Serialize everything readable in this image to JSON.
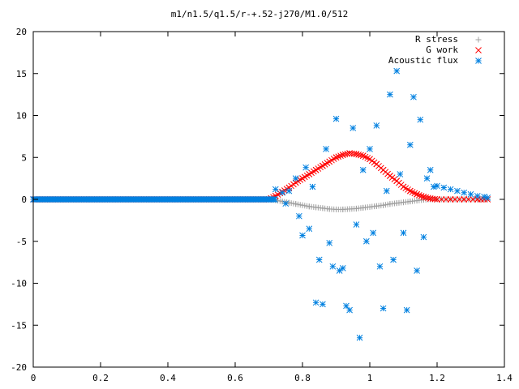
{
  "chart_data": {
    "type": "scatter",
    "title": "m1/n1.5/q1.5/r-+.52-j270/M1.0/512",
    "xlabel": "",
    "ylabel": "",
    "xlim": [
      0,
      1.4
    ],
    "ylim": [
      -20,
      20
    ],
    "x_ticks": [
      0,
      0.2,
      0.4,
      0.6,
      0.8,
      1,
      1.2,
      1.4
    ],
    "x_tick_labels": [
      "0",
      "0.2",
      "0.4",
      "0.6",
      "0.8",
      "1",
      "1.2",
      "1.4"
    ],
    "y_ticks": [
      -20,
      -15,
      -10,
      -5,
      0,
      5,
      10,
      15,
      20
    ],
    "y_tick_labels": [
      "-20",
      "-15",
      "-10",
      "-5",
      "0",
      "5",
      "10",
      "15",
      "20"
    ],
    "grid": false,
    "legend_position": "top-right",
    "series": [
      {
        "name": "R stress",
        "marker": "plus",
        "color": "#a0a0a0",
        "description": "zero for x<0.7, dips to about -1.2 near x=0.9, returns to 0 by x=1.2, then 0 to x=1.35",
        "points": [
          [
            0.7,
            0.0
          ],
          [
            0.72,
            -0.1
          ],
          [
            0.74,
            -0.25
          ],
          [
            0.76,
            -0.4
          ],
          [
            0.78,
            -0.55
          ],
          [
            0.8,
            -0.7
          ],
          [
            0.82,
            -0.85
          ],
          [
            0.84,
            -0.95
          ],
          [
            0.86,
            -1.05
          ],
          [
            0.88,
            -1.15
          ],
          [
            0.9,
            -1.2
          ],
          [
            0.92,
            -1.2
          ],
          [
            0.94,
            -1.15
          ],
          [
            0.96,
            -1.1
          ],
          [
            0.98,
            -1.0
          ],
          [
            1.0,
            -0.9
          ],
          [
            1.02,
            -0.8
          ],
          [
            1.04,
            -0.7
          ],
          [
            1.06,
            -0.55
          ],
          [
            1.08,
            -0.45
          ],
          [
            1.1,
            -0.35
          ],
          [
            1.12,
            -0.25
          ],
          [
            1.14,
            -0.15
          ],
          [
            1.16,
            -0.05
          ],
          [
            1.18,
            0.0
          ],
          [
            1.2,
            0.0
          ],
          [
            1.24,
            0.0
          ],
          [
            1.28,
            0.0
          ],
          [
            1.32,
            0.0
          ],
          [
            1.35,
            0.0
          ]
        ]
      },
      {
        "name": "G work",
        "marker": "cross",
        "color": "#ff0000",
        "description": "zero for x<0.7, rises to about 5.5 near x=0.93, falls back to 0 near x=1.2",
        "points": [
          [
            0.7,
            0.0
          ],
          [
            0.72,
            0.4
          ],
          [
            0.74,
            0.9
          ],
          [
            0.76,
            1.4
          ],
          [
            0.78,
            2.0
          ],
          [
            0.8,
            2.5
          ],
          [
            0.82,
            3.0
          ],
          [
            0.84,
            3.5
          ],
          [
            0.86,
            4.0
          ],
          [
            0.88,
            4.5
          ],
          [
            0.9,
            5.0
          ],
          [
            0.92,
            5.3
          ],
          [
            0.94,
            5.5
          ],
          [
            0.96,
            5.4
          ],
          [
            0.98,
            5.2
          ],
          [
            1.0,
            4.8
          ],
          [
            1.02,
            4.2
          ],
          [
            1.04,
            3.5
          ],
          [
            1.06,
            2.8
          ],
          [
            1.08,
            2.2
          ],
          [
            1.1,
            1.5
          ],
          [
            1.12,
            1.0
          ],
          [
            1.14,
            0.6
          ],
          [
            1.16,
            0.3
          ],
          [
            1.18,
            0.1
          ],
          [
            1.2,
            0.0
          ],
          [
            1.24,
            0.0
          ],
          [
            1.28,
            0.0
          ],
          [
            1.32,
            0.0
          ],
          [
            1.35,
            0.0
          ]
        ]
      },
      {
        "name": "Acoustic flux",
        "marker": "star",
        "color": "#0080e0",
        "description": "zero for x<0.7, widely scattered between about -16.5 and 15.3 for 0.7<x<1.2, decaying tail ~1.5 to 0.2 out to x=1.35",
        "points": [
          [
            0.72,
            1.2
          ],
          [
            0.74,
            0.8
          ],
          [
            0.75,
            -0.5
          ],
          [
            0.76,
            1.0
          ],
          [
            0.78,
            2.5
          ],
          [
            0.79,
            -2.0
          ],
          [
            0.8,
            -4.3
          ],
          [
            0.81,
            3.8
          ],
          [
            0.82,
            -3.5
          ],
          [
            0.83,
            1.5
          ],
          [
            0.84,
            -12.3
          ],
          [
            0.85,
            -7.2
          ],
          [
            0.86,
            -12.5
          ],
          [
            0.87,
            6.0
          ],
          [
            0.88,
            -5.2
          ],
          [
            0.89,
            -8.0
          ],
          [
            0.9,
            9.6
          ],
          [
            0.91,
            -8.5
          ],
          [
            0.92,
            -8.2
          ],
          [
            0.93,
            -12.7
          ],
          [
            0.94,
            -13.2
          ],
          [
            0.95,
            8.5
          ],
          [
            0.96,
            -3.0
          ],
          [
            0.97,
            -16.5
          ],
          [
            0.98,
            3.5
          ],
          [
            0.99,
            -5.0
          ],
          [
            1.0,
            6.0
          ],
          [
            1.01,
            -4.0
          ],
          [
            1.02,
            8.8
          ],
          [
            1.03,
            -8.0
          ],
          [
            1.04,
            -13.0
          ],
          [
            1.05,
            1.0
          ],
          [
            1.06,
            12.5
          ],
          [
            1.07,
            -7.2
          ],
          [
            1.08,
            15.3
          ],
          [
            1.09,
            3.0
          ],
          [
            1.1,
            -4.0
          ],
          [
            1.11,
            -13.2
          ],
          [
            1.12,
            6.5
          ],
          [
            1.13,
            12.2
          ],
          [
            1.14,
            -8.5
          ],
          [
            1.15,
            9.5
          ],
          [
            1.16,
            -4.5
          ],
          [
            1.17,
            2.5
          ],
          [
            1.18,
            3.5
          ],
          [
            1.19,
            1.5
          ],
          [
            1.2,
            1.6
          ],
          [
            1.22,
            1.4
          ],
          [
            1.24,
            1.2
          ],
          [
            1.26,
            1.0
          ],
          [
            1.28,
            0.8
          ],
          [
            1.3,
            0.6
          ],
          [
            1.32,
            0.4
          ],
          [
            1.34,
            0.3
          ],
          [
            1.35,
            0.2
          ]
        ]
      }
    ]
  }
}
